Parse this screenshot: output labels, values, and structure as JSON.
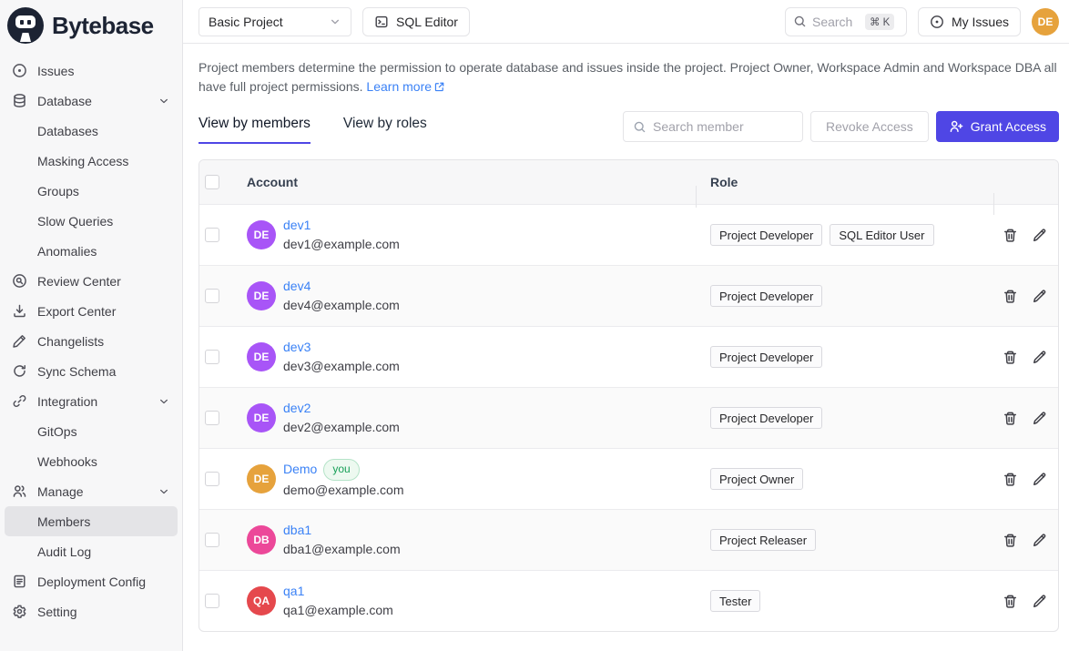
{
  "brand": {
    "name": "Bytebase"
  },
  "topbar": {
    "project": "Basic Project",
    "sql_editor": "SQL Editor",
    "search_placeholder": "Search",
    "search_shortcut": "⌘ K",
    "my_issues": "My Issues",
    "user_initials": "DE"
  },
  "sidebar": {
    "items": [
      {
        "label": "Issues",
        "icon": "issues",
        "level": 0
      },
      {
        "label": "Database",
        "icon": "database",
        "level": 0,
        "expandable": true
      },
      {
        "label": "Databases",
        "level": 1
      },
      {
        "label": "Masking Access",
        "level": 1
      },
      {
        "label": "Groups",
        "level": 1
      },
      {
        "label": "Slow Queries",
        "level": 1
      },
      {
        "label": "Anomalies",
        "level": 1
      },
      {
        "label": "Review Center",
        "icon": "review",
        "level": 0
      },
      {
        "label": "Export Center",
        "icon": "export",
        "level": 0
      },
      {
        "label": "Changelists",
        "icon": "changelist",
        "level": 0
      },
      {
        "label": "Sync Schema",
        "icon": "sync",
        "level": 0
      },
      {
        "label": "Integration",
        "icon": "link",
        "level": 0,
        "expandable": true
      },
      {
        "label": "GitOps",
        "level": 1
      },
      {
        "label": "Webhooks",
        "level": 1
      },
      {
        "label": "Manage",
        "icon": "users",
        "level": 0,
        "expandable": true
      },
      {
        "label": "Members",
        "level": 1,
        "active": true
      },
      {
        "label": "Audit Log",
        "level": 1
      },
      {
        "label": "Deployment Config",
        "icon": "file",
        "level": 0
      },
      {
        "label": "Setting",
        "icon": "gear",
        "level": 0
      }
    ]
  },
  "main": {
    "description": "Project members determine the permission to operate database and issues inside the project. Project Owner, Workspace Admin and Workspace DBA all have full project permissions.",
    "learn_more": "Learn more",
    "tabs": [
      {
        "label": "View by members",
        "active": true
      },
      {
        "label": "View by roles",
        "active": false
      }
    ],
    "member_search_placeholder": "Search member",
    "revoke_button": "Revoke Access",
    "grant_button": "Grant Access",
    "table": {
      "columns": [
        "Account",
        "Role"
      ],
      "rows": [
        {
          "initials": "DE",
          "avatar_color": "#a855f7",
          "name": "dev1",
          "email": "dev1@example.com",
          "roles": [
            "Project Developer",
            "SQL Editor User"
          ]
        },
        {
          "initials": "DE",
          "avatar_color": "#a855f7",
          "name": "dev4",
          "email": "dev4@example.com",
          "roles": [
            "Project Developer"
          ]
        },
        {
          "initials": "DE",
          "avatar_color": "#a855f7",
          "name": "dev3",
          "email": "dev3@example.com",
          "roles": [
            "Project Developer"
          ]
        },
        {
          "initials": "DE",
          "avatar_color": "#a855f7",
          "name": "dev2",
          "email": "dev2@example.com",
          "roles": [
            "Project Developer"
          ]
        },
        {
          "initials": "DE",
          "avatar_color": "#e6a23c",
          "name": "Demo",
          "badge": "you",
          "email": "demo@example.com",
          "roles": [
            "Project Owner"
          ]
        },
        {
          "initials": "DB",
          "avatar_color": "#ec4899",
          "name": "dba1",
          "email": "dba1@example.com",
          "roles": [
            "Project Releaser"
          ]
        },
        {
          "initials": "QA",
          "avatar_color": "#e5484d",
          "name": "qa1",
          "email": "qa1@example.com",
          "roles": [
            "Tester"
          ]
        }
      ]
    }
  },
  "colors": {
    "accent": "#4f46e5",
    "link": "#3b82f6",
    "you_badge": "#18a058",
    "sidebar_bg": "#f7f7f8",
    "header_bg": "#f7f7f8"
  }
}
